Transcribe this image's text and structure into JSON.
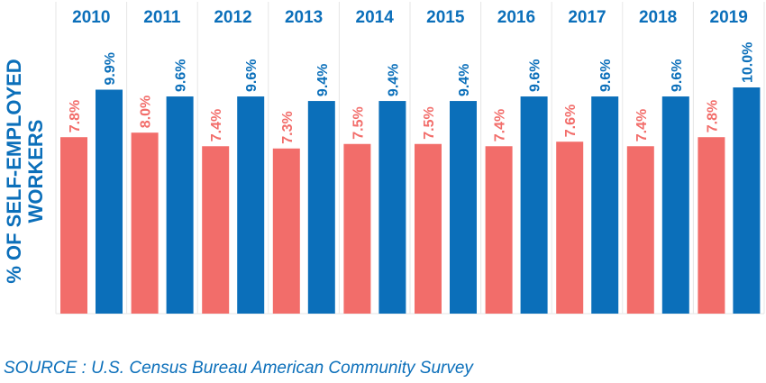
{
  "chart_data": {
    "type": "bar",
    "title": "",
    "xlabel": "",
    "ylabel_lines": [
      "% OF SELF-EMPLOYED",
      "WORKERS"
    ],
    "categories": [
      "2010",
      "2011",
      "2012",
      "2013",
      "2014",
      "2015",
      "2016",
      "2017",
      "2018",
      "2019"
    ],
    "series": [
      {
        "color": "#f26d6a",
        "values": [
          7.8,
          8.0,
          7.4,
          7.3,
          7.5,
          7.5,
          7.4,
          7.6,
          7.4,
          7.8
        ],
        "labels": [
          "7.8%",
          "8.0%",
          "7.4%",
          "7.3%",
          "7.5%",
          "7.5%",
          "7.4%",
          "7.6%",
          "7.4%",
          "7.8%"
        ]
      },
      {
        "color": "#0b6fba",
        "values": [
          9.9,
          9.6,
          9.6,
          9.4,
          9.4,
          9.4,
          9.6,
          9.6,
          9.6,
          10.0
        ],
        "labels": [
          "9.9%",
          "9.6%",
          "9.6%",
          "9.4%",
          "9.4%",
          "9.4%",
          "9.6%",
          "9.6%",
          "9.6%",
          "10.0%"
        ]
      }
    ],
    "ylim": [
      0,
      10.0
    ],
    "grid": "vertical",
    "legend": "none",
    "colors": {
      "year_labels": "#0b6fba",
      "ylabel": "#0b6fba",
      "grid": "#e6e6e6"
    }
  },
  "source": "SOURCE : U.S. Census Bureau American Community Survey",
  "colors": {
    "source": "#0b6fba"
  }
}
